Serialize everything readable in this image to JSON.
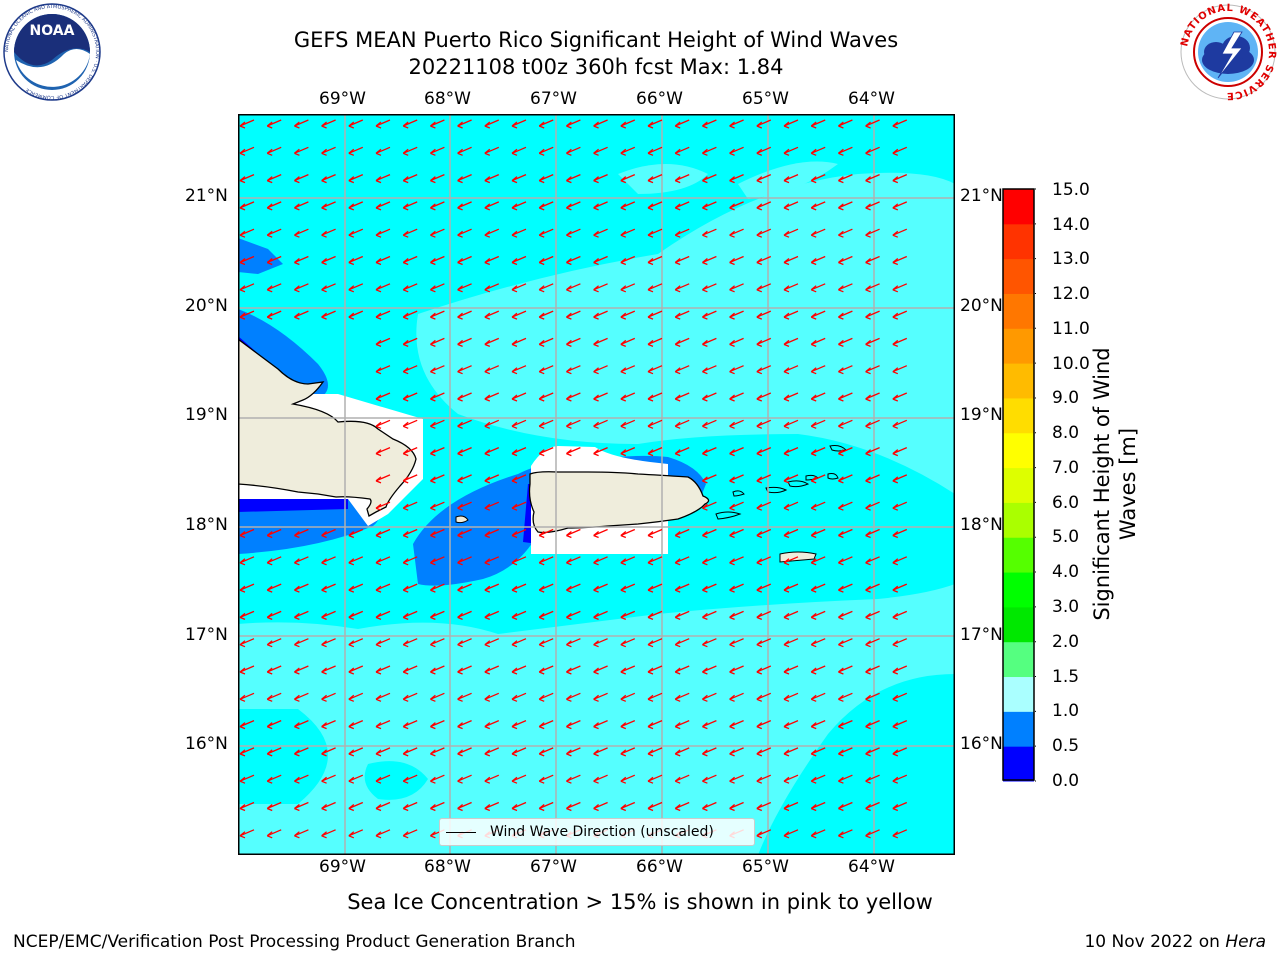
{
  "header": {
    "title_line1": "GEFS MEAN Puerto Rico Significant Height of Wind Waves",
    "title_line2": "20221108 t00z 360h fcst   Max: 1.84"
  },
  "logos": {
    "noaa_text": "NOAA",
    "noaa_ring_text": "NATIONAL OCEANIC AND ATMOSPHERIC ADMINISTRATION · U.S. DEPARTMENT OF COMMERCE",
    "nws_ring_text": "NATIONAL WEATHER SERVICE"
  },
  "map": {
    "lon_labels": [
      "69°W",
      "68°W",
      "67°W",
      "66°W",
      "65°W",
      "64°W"
    ],
    "lat_labels": [
      "21°N",
      "20°N",
      "19°N",
      "18°N",
      "17°N",
      "16°N"
    ],
    "legend_label": "Wind Wave Direction (unscaled)",
    "wave_direction": "toward southwest",
    "arrow_color": "#ff0000",
    "land_color": "#efeddc"
  },
  "colorbar": {
    "label": "Significant Height of Wind Waves [m]",
    "ticks": [
      "15.0",
      "14.0",
      "13.0",
      "12.0",
      "11.0",
      "10.0",
      "9.0",
      "8.0",
      "7.0",
      "6.0",
      "5.0",
      "4.0",
      "3.0",
      "2.0",
      "1.5",
      "1.0",
      "0.5",
      "0.0"
    ],
    "colors_bottom_to_top": [
      "#0000ff",
      "#0080ff",
      "#00ffff",
      "#55ffff",
      "#aaffff",
      "#55ff80",
      "#00e800",
      "#00ff00",
      "#55ff00",
      "#aaff00",
      "#ddff00",
      "#ffff00",
      "#ffdd00",
      "#ffbb00",
      "#ff9900",
      "#ff7700",
      "#ff5500",
      "#ff3300",
      "#ff0000"
    ]
  },
  "note": "Sea Ice Concentration > 15% is shown in pink to yellow",
  "footer": {
    "left": "NCEP/EMC/Verification Post Processing Product Generation Branch",
    "date": "10 Nov 2022 on ",
    "machine": "Hera"
  }
}
